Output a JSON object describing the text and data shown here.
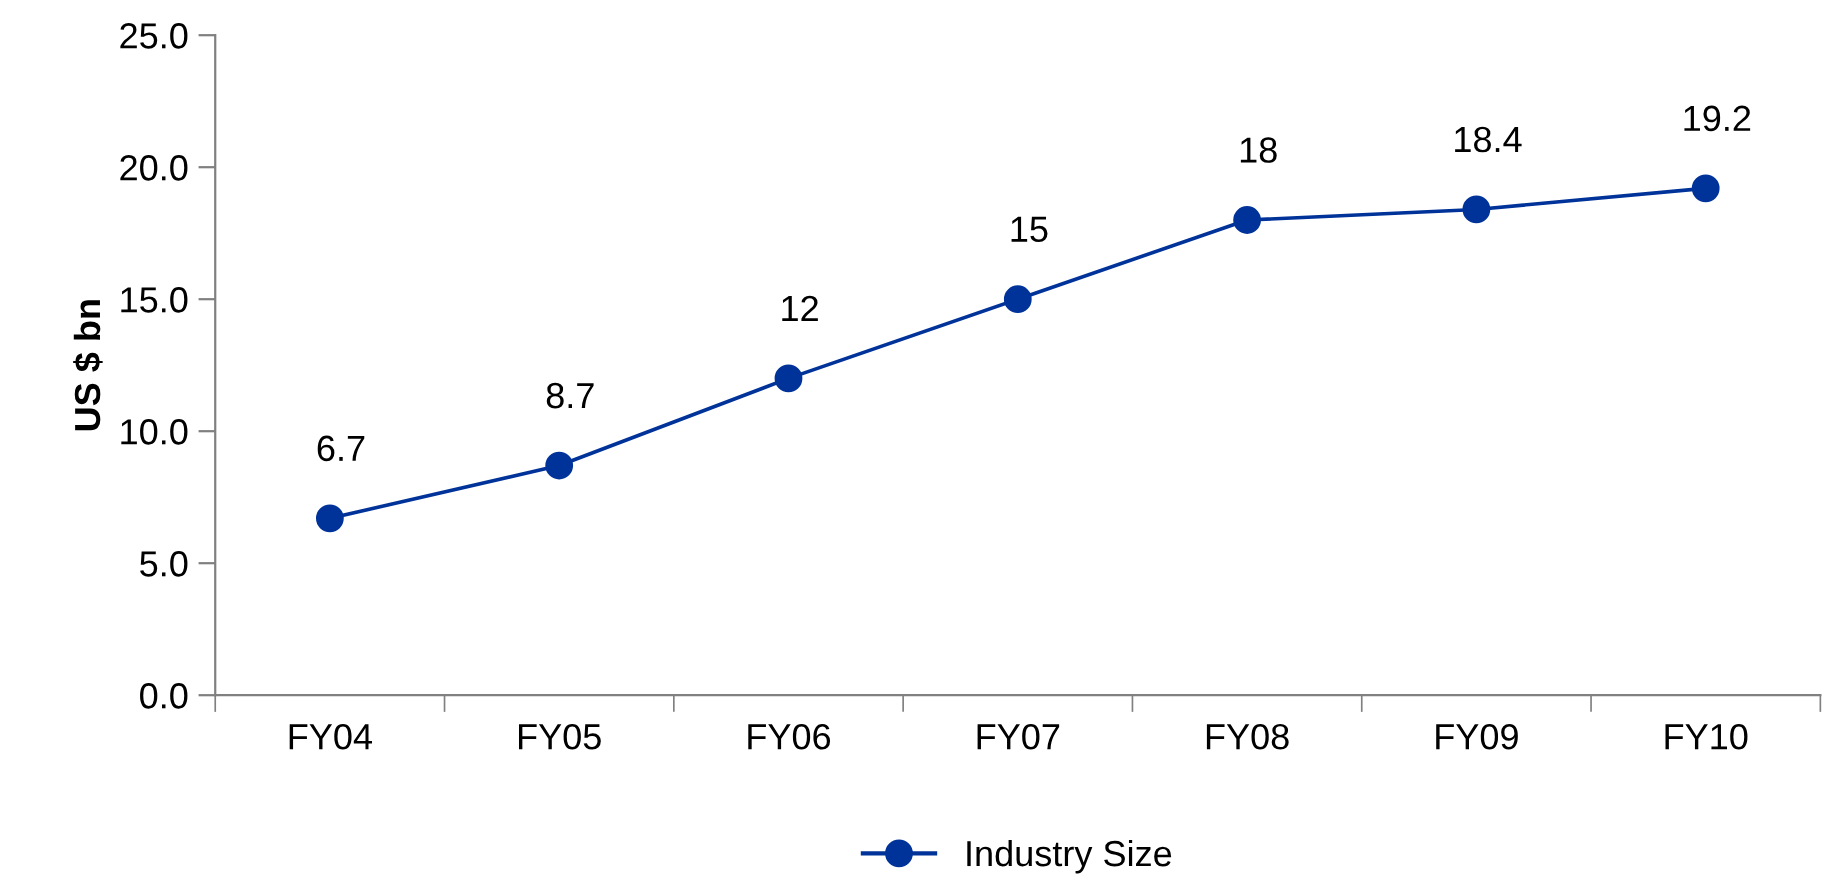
{
  "chart_data": {
    "type": "line",
    "ylabel": "US $ bn",
    "categories": [
      "FY04",
      "FY05",
      "FY06",
      "FY07",
      "FY08",
      "FY09",
      "FY10"
    ],
    "series": [
      {
        "name": "Industry Size",
        "color": "#003399",
        "values": [
          6.7,
          8.7,
          12,
          15,
          18,
          18.4,
          19.2
        ]
      }
    ],
    "ylim": [
      0,
      25
    ],
    "yticks": [
      {
        "value": 0,
        "label": "0.0"
      },
      {
        "value": 5,
        "label": "5.0"
      },
      {
        "value": 10,
        "label": "10.0"
      },
      {
        "value": 15,
        "label": "15.0"
      },
      {
        "value": 20,
        "label": "20.0"
      },
      {
        "value": 25,
        "label": "25.0"
      }
    ],
    "data_labels": true,
    "marker": "circle",
    "line_style": "solid",
    "grid": false,
    "legend": "bottom"
  }
}
